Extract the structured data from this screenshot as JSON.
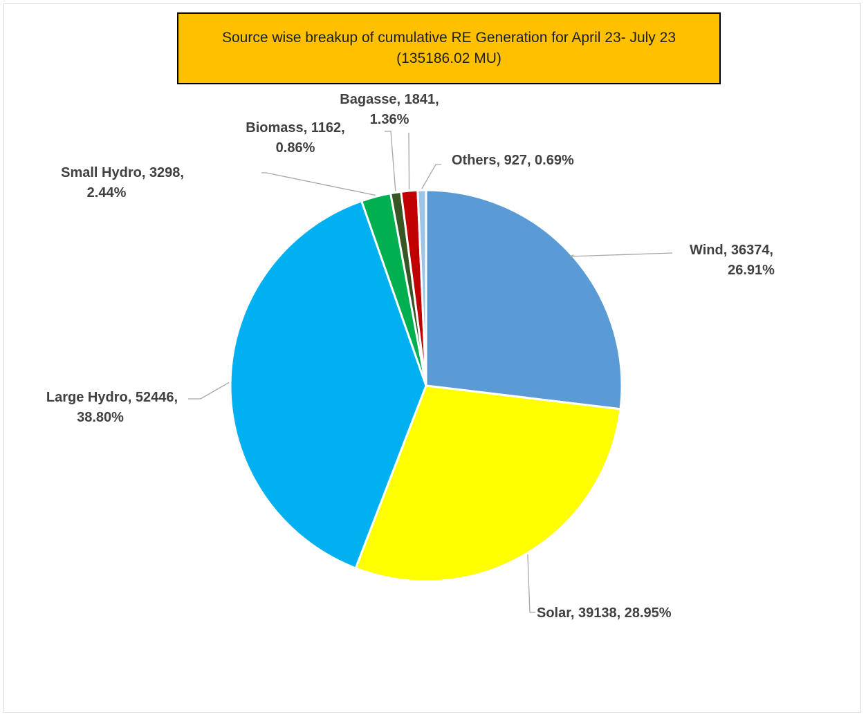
{
  "chart_data": {
    "type": "pie",
    "title": "Source wise breakup of cumulative  RE Generation for April 23- July 23",
    "subtitle": "(135186.02 MU)",
    "slices": [
      {
        "name": "Wind",
        "value": 36374,
        "percent": "26.91%",
        "color": "#5b9bd5",
        "label_lines": [
          "Wind, 36374,",
          "26.91%"
        ]
      },
      {
        "name": "Solar",
        "value": 39138,
        "percent": "28.95%",
        "color": "#ffff00",
        "label_lines": [
          "Solar, 39138, 28.95%"
        ]
      },
      {
        "name": "Large Hydro",
        "value": 52446,
        "percent": "38.80%",
        "color": "#00b0f0",
        "label_lines": [
          "Large Hydro, 52446,",
          "38.80%"
        ]
      },
      {
        "name": "Small Hydro",
        "value": 3298,
        "percent": "2.44%",
        "color": "#00b050",
        "label_lines": [
          "Small Hydro, 3298,",
          "2.44%"
        ]
      },
      {
        "name": "Biomass",
        "value": 1162,
        "percent": "0.86%",
        "color": "#375623",
        "label_lines": [
          "Biomass, 1162,",
          "0.86%"
        ]
      },
      {
        "name": "Bagasse",
        "value": 1841,
        "percent": "1.36%",
        "color": "#c00000",
        "label_lines": [
          "Bagasse, 1841,",
          "1.36%"
        ]
      },
      {
        "name": "Others",
        "value": 927,
        "percent": "0.69%",
        "color": "#9dc3e6",
        "label_lines": [
          "Others, 927, 0.69%"
        ]
      }
    ]
  }
}
